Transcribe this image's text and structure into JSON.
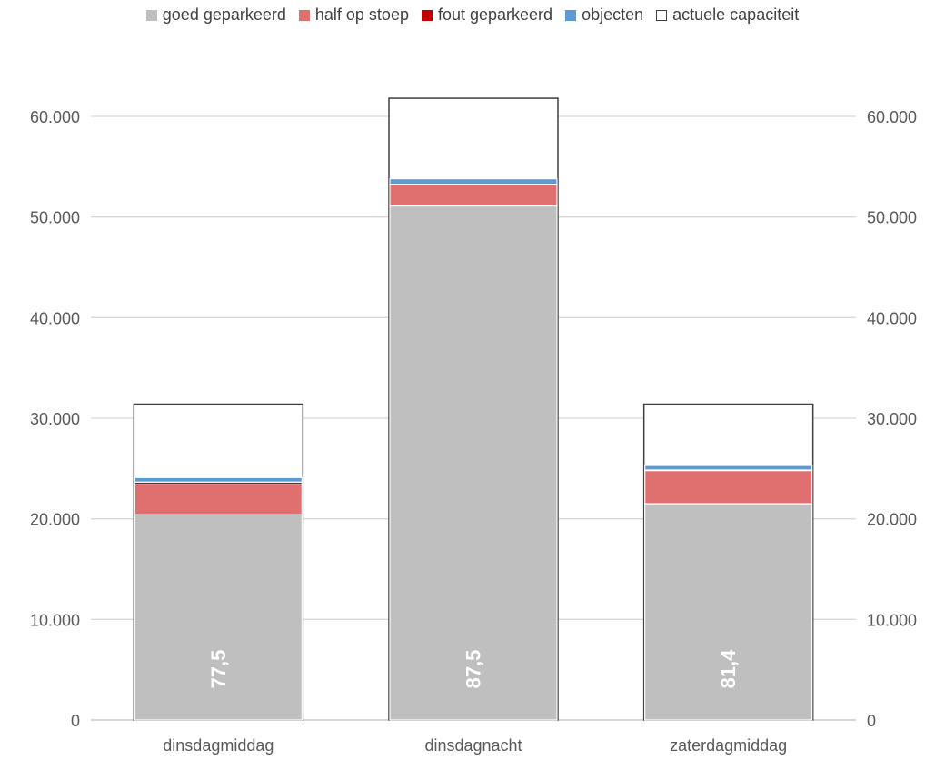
{
  "chart_data": {
    "type": "bar",
    "stacked": true,
    "categories": [
      "dinsdagmiddag",
      "dinsdagnacht",
      "zaterdagmiddag"
    ],
    "series": [
      {
        "name": "goed geparkeerd",
        "color": "#BFBFBF",
        "values": [
          20400,
          51100,
          21500
        ]
      },
      {
        "name": "half op stoep",
        "color": "#E07070",
        "values": [
          3000,
          2100,
          3300
        ]
      },
      {
        "name": "fout geparkeerd",
        "color": "#C00000",
        "values": [
          250,
          50,
          50
        ]
      },
      {
        "name": "objecten",
        "color": "#5B9BD5",
        "values": [
          450,
          550,
          450
        ]
      },
      {
        "name": "actuele capaciteit",
        "color": "#FFFFFF",
        "border": "#404040",
        "totals": [
          31400,
          61800,
          31400
        ]
      }
    ],
    "bar_labels": [
      "77,5",
      "87,5",
      "81,4"
    ],
    "ylim": [
      0,
      64000
    ],
    "yticks": [
      0,
      10000,
      20000,
      30000,
      40000,
      50000,
      60000
    ],
    "ytick_labels": [
      "0",
      "10.000",
      "20.000",
      "30.000",
      "40.000",
      "50.000",
      "60.000"
    ],
    "y2tick_labels": [
      "0",
      "10.000",
      "20.000",
      "30.000",
      "40.000",
      "50.000",
      "60.000"
    ],
    "grid": true,
    "legend_position": "top",
    "title": "",
    "xlabel": "",
    "ylabel": ""
  }
}
